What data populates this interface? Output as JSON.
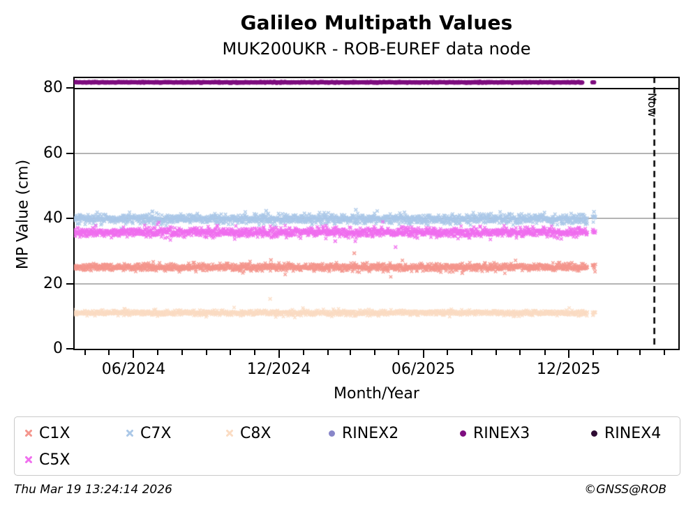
{
  "header": {
    "title": "Galileo Multipath Values",
    "subtitle": "MUK200UKR - ROB-EUREF data node"
  },
  "footer": {
    "timestamp": "Thu Mar 19 13:24:14 2026",
    "credit": "©GNSS@ROB"
  },
  "legend": {
    "items": [
      {
        "label": "C1X",
        "color": "#f4968d",
        "marker": "x"
      },
      {
        "label": "C7X",
        "color": "#abc8e8",
        "marker": "x"
      },
      {
        "label": "C8X",
        "color": "#fbdcc3",
        "marker": "x"
      },
      {
        "label": "RINEX2",
        "color": "#8886c9",
        "marker": "dot"
      },
      {
        "label": "RINEX3",
        "color": "#7e0d7f",
        "marker": "dot"
      },
      {
        "label": "RINEX4",
        "color": "#2e0b33",
        "marker": "dot"
      },
      {
        "label": "C5X",
        "color": "#f06eee",
        "marker": "x"
      }
    ]
  },
  "chart_data": {
    "type": "scatter",
    "title": "Galileo Multipath Values",
    "subtitle": "MUK200UKR - ROB-EUREF data node",
    "xlabel": "Month/Year",
    "ylabel": "MP Value (cm)",
    "ylim": [
      0,
      80
    ],
    "grid": {
      "y_values": [
        20,
        40,
        60
      ],
      "color": "#b4b4b4"
    },
    "y_ticks": [
      0,
      20,
      40,
      60,
      80
    ],
    "x_domain": [
      "2024-03-17",
      "2026-04-20"
    ],
    "x_major_ticks": [
      {
        "date": "2024-06-01",
        "label": "06/2024"
      },
      {
        "date": "2024-12-01",
        "label": "12/2024"
      },
      {
        "date": "2025-06-01",
        "label": "06/2025"
      },
      {
        "date": "2025-12-01",
        "label": "12/2025"
      }
    ],
    "threshold_line": {
      "y": 80,
      "color": "#000000"
    },
    "now_line": {
      "date": "2026-03-19",
      "label": "Now",
      "style": "dashed",
      "color": "#000000"
    },
    "data_window": {
      "start": "2024-03-17",
      "dense_end": "2025-12-25",
      "tail_start": "2025-12-31",
      "tail_end": "2026-01-04"
    },
    "series": [
      {
        "name": "C1X",
        "color": "#f4968d",
        "marker": "x",
        "mean": 25.0,
        "spread": 0.55,
        "outliers": [
          {
            "date": "2024-11-21",
            "value": 27.2
          },
          {
            "date": "2025-03-06",
            "value": 29.3
          },
          {
            "date": "2025-07-20",
            "value": 23.2
          }
        ]
      },
      {
        "name": "C7X",
        "color": "#abc8e8",
        "marker": "x",
        "mean": 39.8,
        "spread": 0.7,
        "outliers": [
          {
            "date": "2024-11-15",
            "value": 42.3
          },
          {
            "date": "2025-03-08",
            "value": 42.6
          },
          {
            "date": "2026-01-02",
            "value": 42.0
          }
        ]
      },
      {
        "name": "C8X",
        "color": "#fbdcc3",
        "marker": "x",
        "mean": 11.0,
        "spread": 0.38,
        "outliers": [
          {
            "date": "2024-11-20",
            "value": 15.3
          }
        ]
      },
      {
        "name": "C5X",
        "color": "#f06eee",
        "marker": "x",
        "mean": 35.7,
        "spread": 0.7,
        "outliers": [
          {
            "date": "2025-04-27",
            "value": 31.2
          },
          {
            "date": "2025-02-10",
            "value": 33.0
          }
        ]
      },
      {
        "name": "RINEX3",
        "color": "#7e0d7f",
        "marker": "dot",
        "band": true,
        "value": 81.3,
        "outliers": []
      }
    ]
  }
}
